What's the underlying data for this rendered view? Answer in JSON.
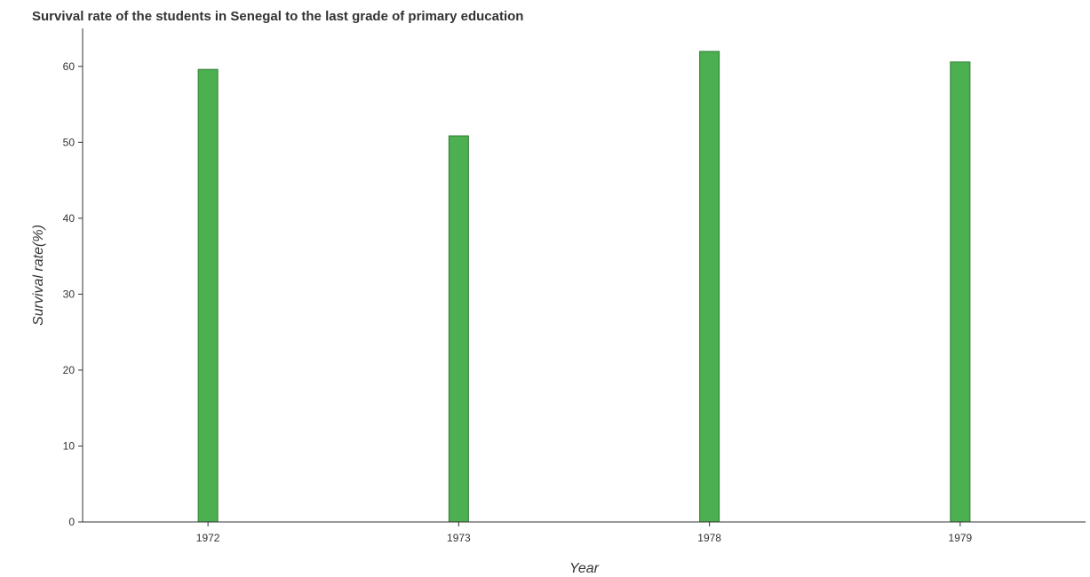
{
  "chart_data": {
    "type": "bar",
    "title": "Survival rate of the students in Senegal to the last grade of primary education",
    "xlabel": "Year",
    "ylabel": "Survival rate(%)",
    "categories": [
      "1972",
      "1973",
      "1978",
      "1979"
    ],
    "values": [
      59.6,
      50.85,
      61.97,
      60.58
    ],
    "ylim": [
      0,
      65
    ],
    "yticks": [
      0,
      10,
      20,
      30,
      40,
      50,
      60
    ],
    "bar_color": "#4caf50",
    "bar_edge_color": "#2e7d32",
    "grid": false,
    "legend": "none"
  }
}
